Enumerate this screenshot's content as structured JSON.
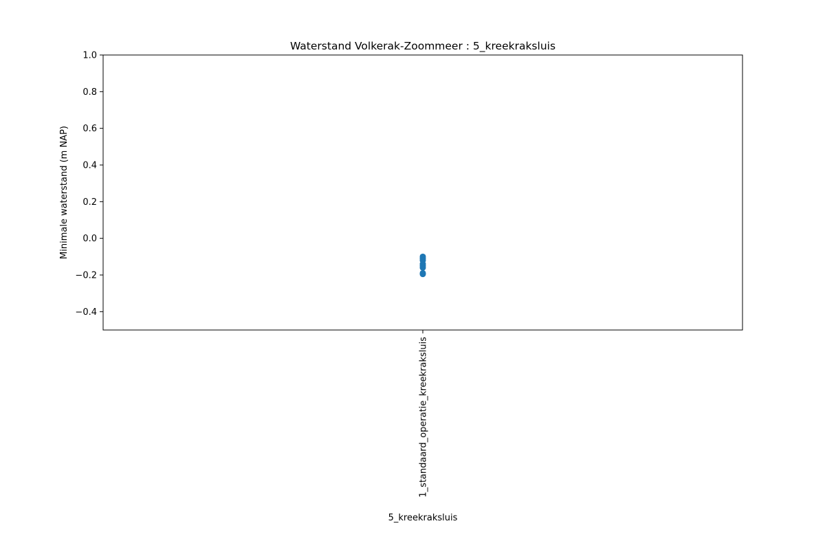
{
  "chart_data": {
    "type": "scatter",
    "title": "Waterstand Volkerak-Zoommeer : 5_kreekraksluis",
    "xlabel": "5_kreekraksluis",
    "ylabel": "Minimale waterstand (m NAP)",
    "categories": [
      "1_standaard_operatie_kreekraksluis"
    ],
    "ylim": [
      -0.5,
      1.0
    ],
    "yticks": [
      -0.4,
      -0.2,
      0.0,
      0.2,
      0.4,
      0.6,
      0.8,
      1.0
    ],
    "ytick_labels": [
      "−0.4",
      "−0.2",
      "0.0",
      "0.2",
      "0.4",
      "0.6",
      "0.8",
      "1.0"
    ],
    "grid": false,
    "series": [
      {
        "category": "1_standaard_operatie_kreekraksluis",
        "values": [
          -0.1,
          -0.11,
          -0.12,
          -0.14,
          -0.15,
          -0.16,
          -0.19,
          -0.195
        ]
      }
    ],
    "marker_color": "#1f77b4"
  }
}
